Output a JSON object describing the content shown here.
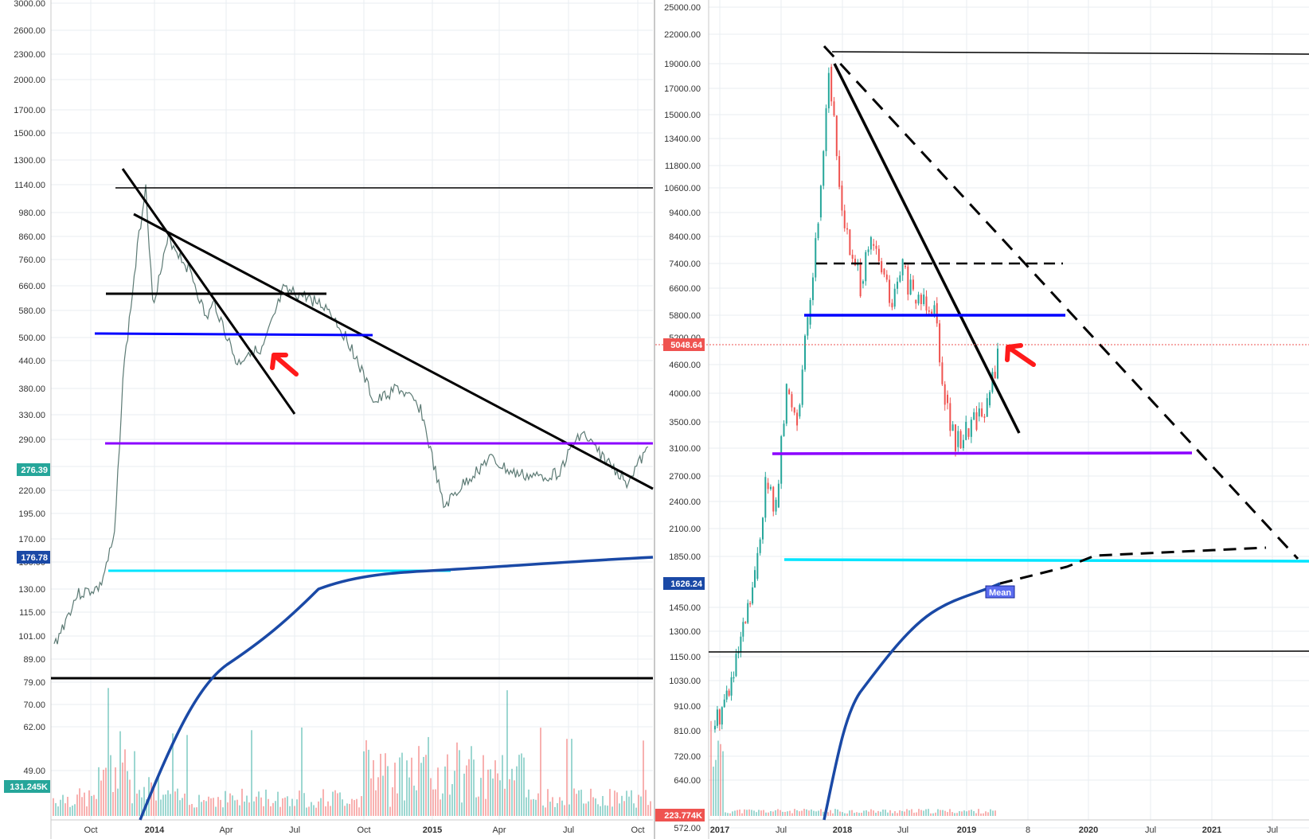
{
  "chart_data": [
    {
      "type": "line",
      "name": "left-panel",
      "scale": "log",
      "ylim": [
        47,
        3000
      ],
      "y_ticks": [
        "3000.00",
        "2600.00",
        "2300.00",
        "2000.00",
        "1700.00",
        "1500.00",
        "1300.00",
        "1140.00",
        "980.00",
        "860.00",
        "760.00",
        "660.00",
        "580.00",
        "500.00",
        "440.00",
        "380.00",
        "330.00",
        "290.00",
        "250.00",
        "220.00",
        "195.00",
        "170.00",
        "150.00",
        "130.00",
        "115.00",
        "101.00",
        "89.00",
        "79.00",
        "70.00",
        "62.00",
        "49.00"
      ],
      "x_ticks": [
        "Oct",
        "2014",
        "Apr",
        "Jul",
        "Oct",
        "2015",
        "Apr",
        "Jul",
        "Oct"
      ],
      "last_price": "276.39",
      "mean_value": "176.78",
      "volume_label": "131.245K",
      "colors": {
        "up": "#26a69a",
        "down": "#ef5350",
        "mean": "#1a49a6",
        "blue": "#0000ff",
        "purple": "#8b00ff",
        "cyan": "#00e5ff"
      },
      "price_path": [
        [
          "2013-08",
          95
        ],
        [
          "2013-09",
          125
        ],
        [
          "2013-10",
          130
        ],
        [
          "2013-10-20",
          170
        ],
        [
          "2013-11",
          400
        ],
        [
          "2013-11-20",
          800
        ],
        [
          "2013-12-01",
          1140
        ],
        [
          "2013-12-10",
          600
        ],
        [
          "2013-12-20",
          700
        ],
        [
          "2014-01",
          850
        ],
        [
          "2014-02",
          700
        ],
        [
          "2014-02-20",
          550
        ],
        [
          "2014-03",
          600
        ],
        [
          "2014-04",
          430
        ],
        [
          "2014-04-20",
          470
        ],
        [
          "2014-05",
          450
        ],
        [
          "2014-06",
          640
        ],
        [
          "2014-07",
          620
        ],
        [
          "2014-08",
          580
        ],
        [
          "2014-09",
          470
        ],
        [
          "2014-10",
          350
        ],
        [
          "2014-11",
          380
        ],
        [
          "2014-12",
          340
        ],
        [
          "2015-01",
          200
        ],
        [
          "2015-02",
          230
        ],
        [
          "2015-03",
          260
        ],
        [
          "2015-04",
          240
        ],
        [
          "2015-05",
          235
        ],
        [
          "2015-06",
          240
        ],
        [
          "2015-07",
          300
        ],
        [
          "2015-08",
          260
        ],
        [
          "2015-09",
          230
        ],
        [
          "2015-10",
          276
        ]
      ]
    },
    {
      "type": "line",
      "name": "right-panel",
      "scale": "log",
      "ylim": [
        560,
        25000
      ],
      "y_ticks": [
        "25000.00",
        "22000.00",
        "19000.00",
        "17000.00",
        "15000.00",
        "13400.00",
        "11800.00",
        "10600.00",
        "9400.00",
        "8400.00",
        "7400.00",
        "6600.00",
        "5800.00",
        "5200.00",
        "4600.00",
        "4000.00",
        "3500.00",
        "3100.00",
        "2700.00",
        "2400.00",
        "2100.00",
        "1850.00",
        "1450.00",
        "1300.00",
        "1150.00",
        "1030.00",
        "910.00",
        "810.00",
        "720.00",
        "640.00",
        "572.00"
      ],
      "x_ticks": [
        "2017",
        "Jul",
        "2018",
        "Jul",
        "2019",
        "8",
        "2020",
        "Jul",
        "2021",
        "Jul"
      ],
      "last_price": "5048.64",
      "mean_value": "1626.24",
      "mean_label": "Mean",
      "volume_label": "223.774K",
      "price_path": [
        [
          "2017-01",
          900
        ],
        [
          "2017-03",
          1150
        ],
        [
          "2017-05",
          1800
        ],
        [
          "2017-06",
          2800
        ],
        [
          "2017-07",
          2500
        ],
        [
          "2017-08",
          4300
        ],
        [
          "2017-09",
          3800
        ],
        [
          "2017-10",
          5800
        ],
        [
          "2017-11",
          9500
        ],
        [
          "2017-12",
          19000
        ],
        [
          "2018-01",
          11000
        ],
        [
          "2018-02",
          8000
        ],
        [
          "2018-03",
          7000
        ],
        [
          "2018-04",
          8400
        ],
        [
          "2018-05",
          7500
        ],
        [
          "2018-06",
          6300
        ],
        [
          "2018-07",
          7600
        ],
        [
          "2018-08",
          6500
        ],
        [
          "2018-09",
          6600
        ],
        [
          "2018-10",
          6400
        ],
        [
          "2018-11",
          4200
        ],
        [
          "2018-12",
          3300
        ],
        [
          "2019-01",
          3600
        ],
        [
          "2019-02",
          3800
        ],
        [
          "2019-03",
          4000
        ],
        [
          "2019-04",
          5048
        ]
      ]
    }
  ]
}
